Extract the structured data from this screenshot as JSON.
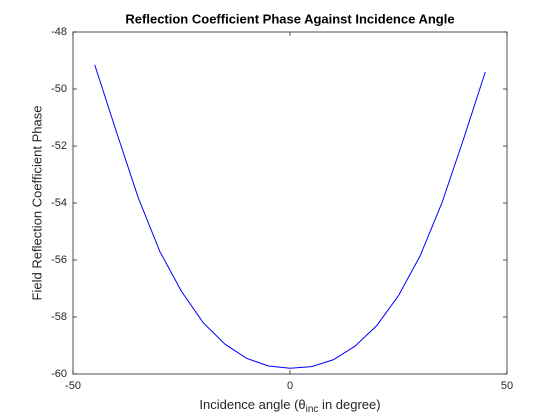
{
  "chart_data": {
    "type": "line",
    "title": "Reflection Coefficient Phase Against Incidence Angle",
    "x_label": [
      "Incidence  angle  (θ",
      "inc",
      "  in  degree)"
    ],
    "y_label": "Field Reflection Coefficient Phase",
    "x": [
      -45,
      -40,
      -35,
      -30,
      -25,
      -20,
      -15,
      -10,
      -5,
      0,
      5,
      10,
      15,
      20,
      25,
      30,
      35,
      40,
      45
    ],
    "series": [
      {
        "color": "#0000ff",
        "values": [
          -49.15,
          -51.5,
          -53.8,
          -55.7,
          -57.1,
          -58.2,
          -58.95,
          -59.45,
          -59.72,
          -59.8,
          -59.74,
          -59.5,
          -59.02,
          -58.3,
          -57.25,
          -55.85,
          -54.0,
          -51.75,
          -49.4
        ]
      }
    ],
    "xlim": [
      -50,
      50
    ],
    "xticks": [
      -50,
      0,
      50
    ],
    "ylim": [
      -60,
      -48
    ],
    "yticks": [
      -60,
      -58,
      -56,
      -54,
      -52,
      -50,
      -48
    ]
  }
}
